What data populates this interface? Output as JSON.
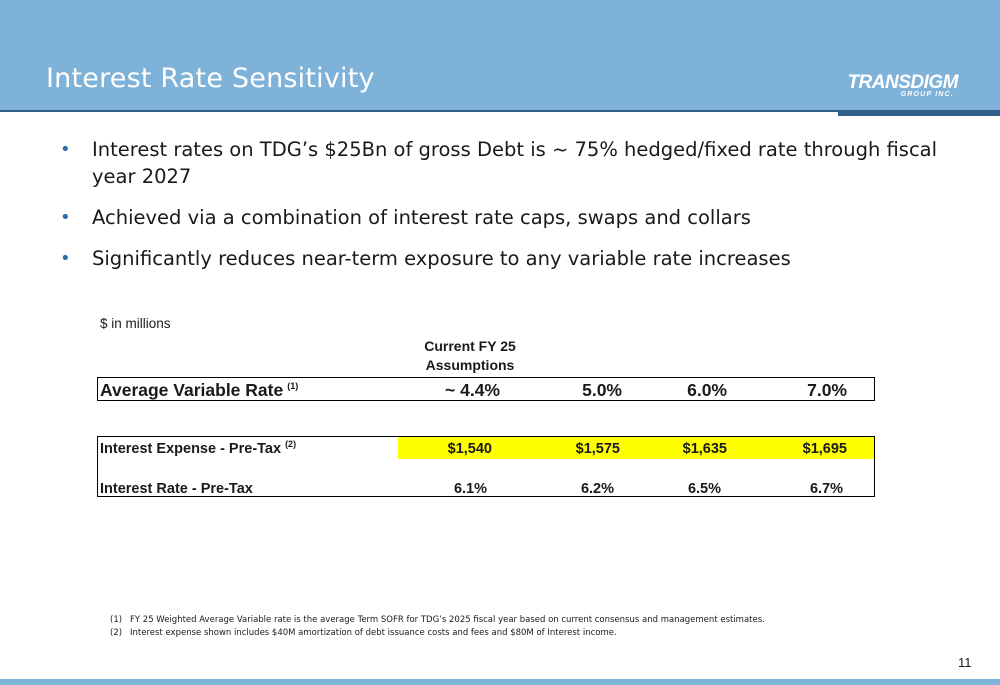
{
  "header": {
    "title": "Interest Rate Sensitivity",
    "logo_main": "TRANSDIGM",
    "logo_sub": "GROUP INC."
  },
  "bullets": [
    "Interest rates on TDG’s $25Bn of gross Debt is ~ 75% hedged/fixed rate through fiscal year 2027",
    "Achieved via a combination of interest rate caps, swaps and collars",
    "Significantly reduces near-term exposure to any variable rate increases"
  ],
  "table": {
    "units": "$ in millions",
    "column_header": "Current FY 25 Assumptions",
    "avg_rate": {
      "label": "Average Variable Rate",
      "footnote": "(1)",
      "values": [
        "~ 4.4%",
        "5.0%",
        "6.0%",
        "7.0%"
      ]
    },
    "interest_expense": {
      "label": "Interest Expense - Pre-Tax",
      "footnote": "(2)",
      "values": [
        "$1,540",
        "$1,575",
        "$1,635",
        "$1,695"
      ]
    },
    "interest_rate": {
      "label": "Interest Rate - Pre-Tax",
      "values": [
        "6.1%",
        "6.2%",
        "6.5%",
        "6.7%"
      ]
    },
    "highlight_color": "#ffff00"
  },
  "footnotes": [
    {
      "num": "(1)",
      "text": "FY 25 Weighted Average Variable rate is the average Term SOFR  for TDG’s 2025 fiscal year based on current consensus and management estimates."
    },
    {
      "num": "(2)",
      "text": "Interest expense shown includes $40M amortization of debt issuance costs and fees and $80M of Interest income."
    }
  ],
  "page_number": "11",
  "colors": {
    "header_bg": "#7fb2d8",
    "accent": "#2f5f8a",
    "bullet": "#2e6da8"
  }
}
